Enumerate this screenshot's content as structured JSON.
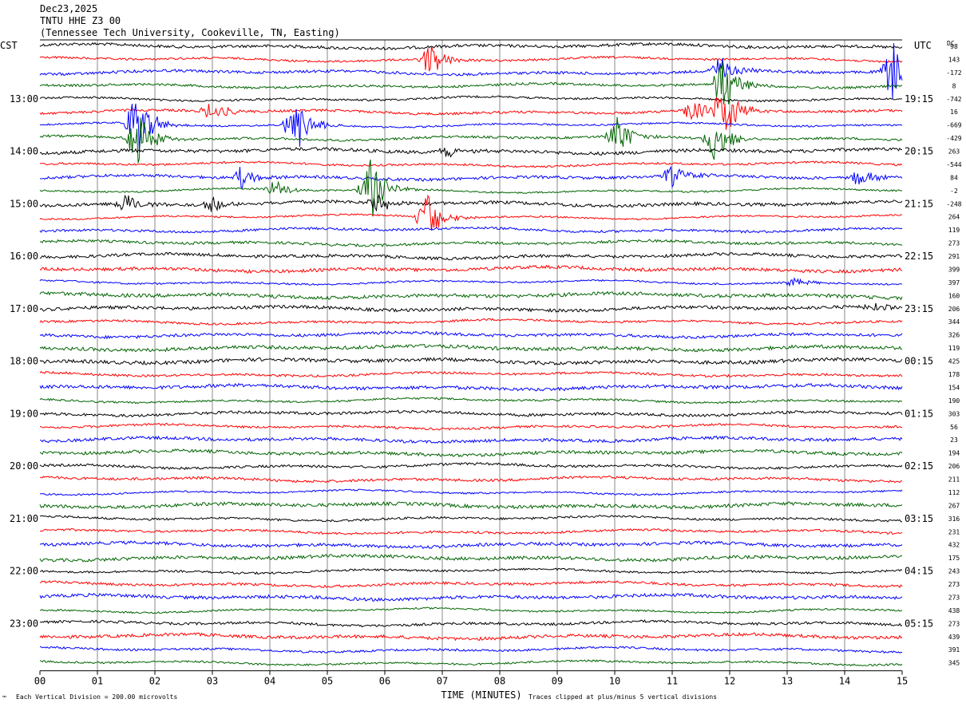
{
  "header": {
    "date": "Dec23,2025",
    "station": "TNTU HHE Z3 00",
    "location": "(Tennessee Tech University, Cookeville, TN, Easting)"
  },
  "left_tz": "CST",
  "right_tz": "UTC",
  "dc_label": "DC",
  "footer": {
    "scale": "Each Vertical Division =  200.00 microvolts",
    "clip": "Traces clipped at plus/minus 5 vertical divisions",
    "corner_mark": "℠"
  },
  "chart_data": {
    "type": "line",
    "title": "TNTU HHE Z3 00",
    "xlabel": "TIME (MINUTES)",
    "ylabel": "",
    "x_ticks": [
      "00",
      "01",
      "02",
      "03",
      "04",
      "05",
      "06",
      "07",
      "08",
      "09",
      "10",
      "11",
      "12",
      "13",
      "14",
      "15"
    ],
    "xlim": [
      0,
      15
    ],
    "trace_count": 48,
    "trace_colors": [
      "#000000",
      "#ff0000",
      "#0000ff",
      "#006400"
    ],
    "left_hour_labels": [
      "13:00",
      "14:00",
      "15:00",
      "16:00",
      "17:00",
      "18:00",
      "19:00",
      "20:00",
      "21:00",
      "22:00",
      "23:00"
    ],
    "right_hour_labels": [
      "19:15",
      "20:15",
      "21:15",
      "22:15",
      "23:15",
      "00:15",
      "01:15",
      "02:15",
      "03:15",
      "04:15",
      "05:15"
    ],
    "dc_offsets": [
      98,
      143,
      -172,
      8,
      -742,
      16,
      -669,
      -429,
      263,
      -544,
      84,
      -2,
      -248,
      264,
      119,
      273,
      291,
      399,
      397,
      160,
      206,
      344,
      326,
      119,
      425,
      178,
      154,
      190,
      303,
      56,
      23,
      194,
      206,
      211,
      112,
      267,
      316,
      231,
      432,
      175,
      243,
      273,
      273,
      438,
      273,
      439,
      391,
      345
    ],
    "events": [
      {
        "trace": 2,
        "minute": 14.85,
        "amplitude": 40
      },
      {
        "trace": 1,
        "minute": 6.8,
        "amplitude": 22
      },
      {
        "trace": 3,
        "minute": 11.9,
        "amplitude": 40
      },
      {
        "trace": 2,
        "minute": 11.85,
        "amplitude": 18
      },
      {
        "trace": 6,
        "minute": 1.7,
        "amplitude": 45
      },
      {
        "trace": 6,
        "minute": 4.45,
        "amplitude": 38
      },
      {
        "trace": 5,
        "minute": 3.0,
        "amplitude": 14
      },
      {
        "trace": 5,
        "minute": 11.9,
        "amplitude": 38
      },
      {
        "trace": 5,
        "minute": 11.35,
        "amplitude": 16
      },
      {
        "trace": 7,
        "minute": 1.7,
        "amplitude": 35
      },
      {
        "trace": 7,
        "minute": 11.75,
        "amplitude": 30
      },
      {
        "trace": 7,
        "minute": 10.05,
        "amplitude": 25
      },
      {
        "trace": 8,
        "minute": 7.1,
        "amplitude": 8
      },
      {
        "trace": 10,
        "minute": 3.5,
        "amplitude": 14
      },
      {
        "trace": 10,
        "minute": 11.0,
        "amplitude": 14
      },
      {
        "trace": 10,
        "minute": 14.25,
        "amplitude": 12
      },
      {
        "trace": 11,
        "minute": 5.75,
        "amplitude": 40
      },
      {
        "trace": 11,
        "minute": 4.1,
        "amplitude": 12
      },
      {
        "trace": 12,
        "minute": 1.5,
        "amplitude": 14
      },
      {
        "trace": 12,
        "minute": 3.0,
        "amplitude": 10
      },
      {
        "trace": 12,
        "minute": 5.9,
        "amplitude": 14
      },
      {
        "trace": 13,
        "minute": 6.75,
        "amplitude": 32
      },
      {
        "trace": 18,
        "minute": 13.15,
        "amplitude": 6
      },
      {
        "trace": 20,
        "minute": 14.5,
        "amplitude": 6
      }
    ]
  }
}
